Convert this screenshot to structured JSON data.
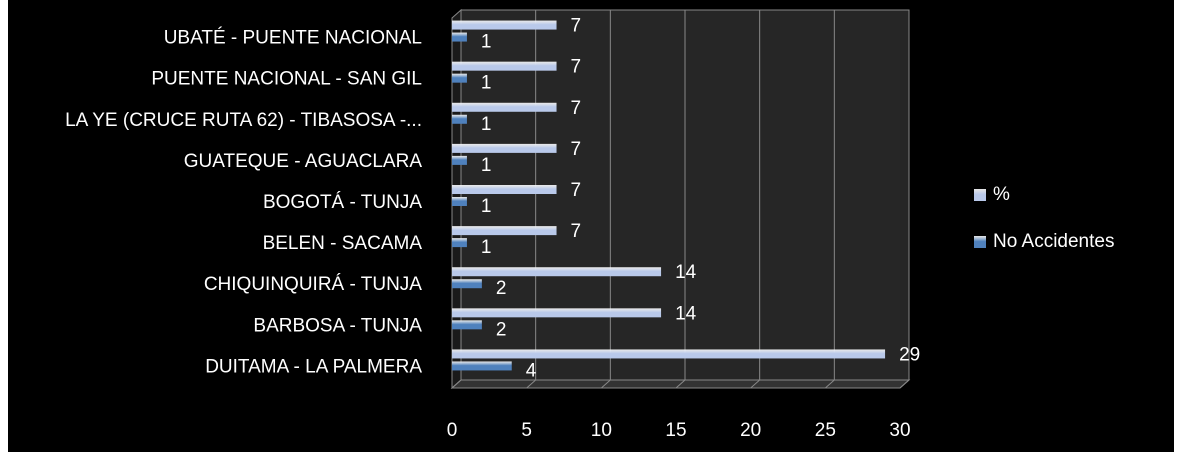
{
  "chart_data": {
    "type": "bar",
    "orientation": "horizontal",
    "categories": [
      "DUITAMA - LA PALMERA",
      "BARBOSA - TUNJA",
      "CHIQUINQUIRÁ - TUNJA",
      "BELEN - SACAMA",
      "BOGOTÁ - TUNJA",
      "GUATEQUE - AGUACLARA",
      "LA YE (CRUCE RUTA 62) - TIBASOSA -...",
      "PUENTE NACIONAL - SAN GIL",
      "UBATÉ - PUENTE NACIONAL"
    ],
    "series": [
      {
        "name": "No Accidentes",
        "color": "#4f81bd",
        "values": [
          4,
          2,
          2,
          1,
          1,
          1,
          1,
          1,
          1
        ]
      },
      {
        "name": "%",
        "color": "#b9c9ea",
        "values": [
          29,
          14,
          14,
          7,
          7,
          7,
          7,
          7,
          7
        ]
      }
    ],
    "xlim": [
      0,
      30
    ],
    "xticks": [
      0,
      5,
      10,
      15,
      20,
      25,
      30
    ],
    "grid": true,
    "legend": "right"
  }
}
